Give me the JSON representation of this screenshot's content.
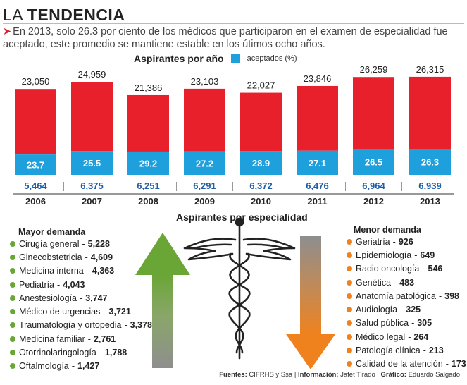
{
  "header": {
    "title_prefix": "LA",
    "title_main": "TENDENCIA",
    "subtitle": "En 2013, solo 26.3 por ciento de los médicos que participaron en el examen de especialidad fue aceptado, este promedio se mantiene estable en los útimos ocho años."
  },
  "colors": {
    "red": "#e8202b",
    "blue": "#1ea0dc",
    "green": "#6aa636",
    "orange": "#f0821e",
    "gray": "#8e8e8e",
    "dark_blue": "#1f5fa8"
  },
  "chart_data": {
    "type": "bar",
    "title": "Aspirantes por año",
    "legend": [
      "aceptados (%)"
    ],
    "categories": [
      "2006",
      "2007",
      "2008",
      "2009",
      "2010",
      "2011",
      "2012",
      "2013"
    ],
    "series": [
      {
        "name": "aspirantes",
        "values": [
          23050,
          24959,
          21386,
          23103,
          22027,
          23846,
          26259,
          26315
        ]
      },
      {
        "name": "aceptados",
        "values": [
          5464,
          6375,
          6251,
          6291,
          6372,
          6476,
          6964,
          6939
        ]
      },
      {
        "name": "aceptados (%)",
        "values": [
          23.7,
          25.5,
          29.2,
          27.2,
          28.9,
          27.1,
          26.5,
          26.3
        ]
      }
    ],
    "total_labels": [
      "23,050",
      "24,959",
      "21,386",
      "23,103",
      "22,027",
      "23,846",
      "26,259",
      "26,315"
    ],
    "accepted_labels": [
      "5,464",
      "6,375",
      "6,251",
      "6,291",
      "6,372",
      "6,476",
      "6,964",
      "6,939"
    ],
    "percent_labels": [
      "23.7",
      "25.5",
      "29.2",
      "27.2",
      "28.9",
      "27.1",
      "26.5",
      "26.3"
    ],
    "ylim": [
      0,
      28000
    ]
  },
  "specialties": {
    "title": "Aspirantes por especialidad",
    "mayor": {
      "title": "Mayor demanda",
      "items": [
        {
          "name": "Cirugía general",
          "value": "5,228"
        },
        {
          "name": "Ginecobstetricia",
          "value": "4,609"
        },
        {
          "name": "Medicina interna",
          "value": "4,363"
        },
        {
          "name": "Pediatría",
          "value": "4,043"
        },
        {
          "name": "Anestesiología",
          "value": "3,747"
        },
        {
          "name": "Médico de urgencias",
          "value": "3,721"
        },
        {
          "name": "Traumatología y ortopedia",
          "value": "3,378"
        },
        {
          "name": "Medicina familiar",
          "value": "2,761"
        },
        {
          "name": "Otorrinolaringología",
          "value": "1,788"
        },
        {
          "name": "Oftalmología",
          "value": "1,427"
        }
      ]
    },
    "menor": {
      "title": "Menor demanda",
      "items": [
        {
          "name": "Geriatría",
          "value": "926"
        },
        {
          "name": "Epidemiología",
          "value": "649"
        },
        {
          "name": "Radio oncología",
          "value": "546"
        },
        {
          "name": "Genética",
          "value": "483"
        },
        {
          "name": "Anatomía patológica",
          "value": "398"
        },
        {
          "name": "Audiología",
          "value": "325"
        },
        {
          "name": "Salud pública",
          "value": "305"
        },
        {
          "name": "Médico legal",
          "value": "264"
        },
        {
          "name": "Patología clínica",
          "value": "213"
        },
        {
          "name": "Calidad de la atención",
          "value": "173"
        }
      ]
    }
  },
  "credits": {
    "fuentes_label": "Fuentes:",
    "fuentes": "CIFRHS y Ssa",
    "info_label": "Información:",
    "info": "Jafet Tirado",
    "grafico_label": "Gráfico:",
    "grafico": "Eduardo Salgado"
  }
}
